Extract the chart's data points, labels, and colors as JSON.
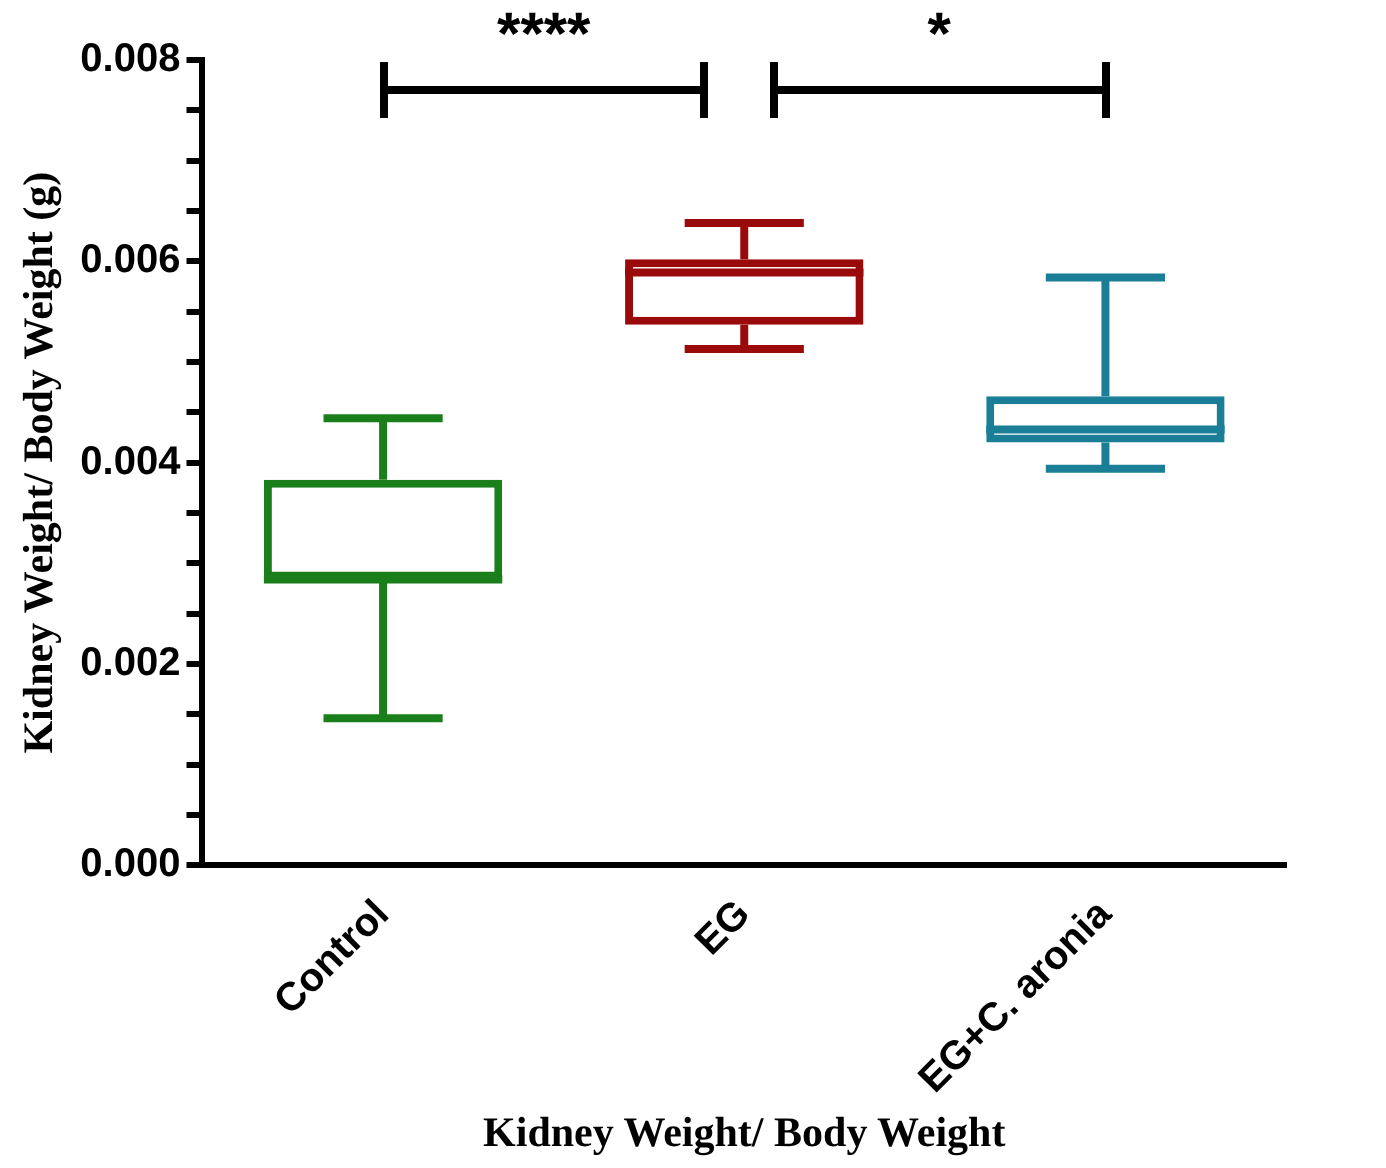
{
  "chart_data": {
    "type": "box",
    "xlabel": "Kidney Weight/ Body Weight",
    "ylabel": "Kidney Weight/ Body Weight (g)",
    "categories": [
      "Control",
      "EG",
      "EG+C. aronia"
    ],
    "colors": [
      "#1a7f1a",
      "#9b0a0a",
      "#1a7f96"
    ],
    "boxes": [
      {
        "low": 0.00146,
        "q1": 0.00284,
        "median": 0.00284,
        "q3": 0.00383,
        "high": 0.00444
      },
      {
        "low": 0.00513,
        "q1": 0.00537,
        "median": 0.00589,
        "q3": 0.00602,
        "high": 0.00638
      },
      {
        "low": 0.00394,
        "q1": 0.0042,
        "median": 0.00433,
        "q3": 0.00466,
        "high": 0.00584
      }
    ],
    "ylim": [
      0,
      0.008
    ],
    "yticks": [
      {
        "value": 0,
        "label": "0.000"
      },
      {
        "value": 0.0005,
        "label": null
      },
      {
        "value": 0.001,
        "label": null
      },
      {
        "value": 0.0015,
        "label": null
      },
      {
        "value": 0.002,
        "label": "0.002"
      },
      {
        "value": 0.0025,
        "label": null
      },
      {
        "value": 0.003,
        "label": null
      },
      {
        "value": 0.0035,
        "label": null
      },
      {
        "value": 0.004,
        "label": "0.004"
      },
      {
        "value": 0.0045,
        "label": null
      },
      {
        "value": 0.005,
        "label": null
      },
      {
        "value": 0.0055,
        "label": null
      },
      {
        "value": 0.006,
        "label": "0.006"
      },
      {
        "value": 0.0065,
        "label": null
      },
      {
        "value": 0.007,
        "label": null
      },
      {
        "value": 0.0075,
        "label": null
      },
      {
        "value": 0.008,
        "label": "0.008"
      }
    ],
    "annotations": [
      "****",
      "*"
    ],
    "grid": false,
    "legend": false
  }
}
